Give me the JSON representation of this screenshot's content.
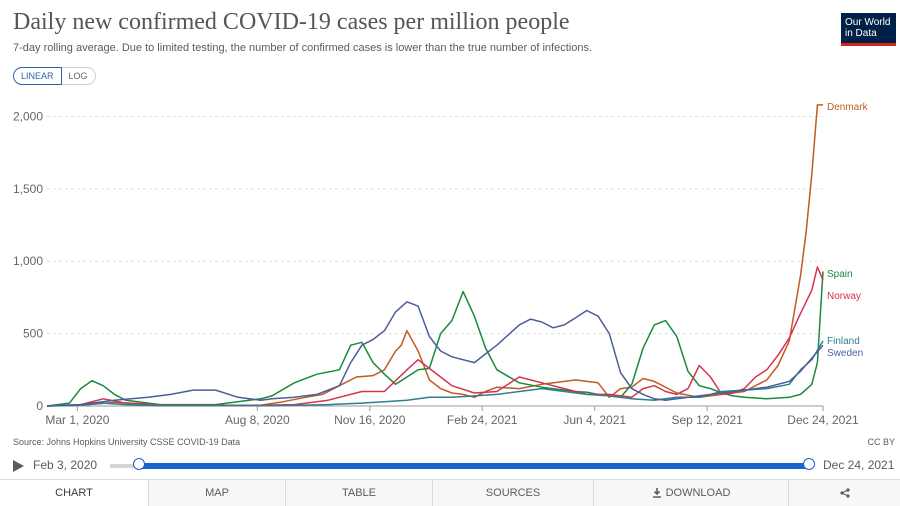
{
  "header": {
    "title": "Daily new confirmed COVID-19 cases per million people",
    "subtitle": "7-day rolling average. Due to limited testing, the number of confirmed cases is lower than the true number of infections.",
    "logo_line1": "Our World",
    "logo_line2": "in Data"
  },
  "scale_toggle": {
    "linear": "LINEAR",
    "log": "LOG",
    "selected": "LINEAR"
  },
  "source": "Source: Johns Hopkins University CSSE COVID-19 Data",
  "license": "CC BY",
  "timeline": {
    "start_label": "Feb 3, 2020",
    "end_label": "Dec 24, 2021"
  },
  "tabs": [
    "CHART",
    "MAP",
    "TABLE",
    "SOURCES",
    "DOWNLOAD"
  ],
  "colors": {
    "Denmark": "#c15b20",
    "Spain": "#1a8a3a",
    "Norway": "#d6334f",
    "Finland": "#2f7f8f",
    "Sweden": "#4c5d9c",
    "accent": "#1764d1"
  },
  "chart_data": {
    "type": "line",
    "title": "Daily new confirmed COVID-19 cases per million people",
    "xlabel": "",
    "ylabel": "",
    "ylim": [
      0,
      2100
    ],
    "y_ticks": [
      0,
      500,
      1000,
      1500,
      2000
    ],
    "y_tick_labels": [
      "0",
      "500",
      "1,000",
      "1,500",
      "2,000"
    ],
    "x_tick_labels": [
      "Mar 1, 2020",
      "Aug 8, 2020",
      "Nov 16, 2020",
      "Feb 24, 2021",
      "Jun 4, 2021",
      "Sep 12, 2021",
      "Dec 24, 2021"
    ],
    "x_tick_days": [
      27,
      187,
      287,
      387,
      487,
      587,
      690
    ],
    "x_days_range": [
      0,
      690
    ],
    "x_unit": "days since Feb 3, 2020",
    "series": [
      {
        "name": "Denmark",
        "color": "#c15b20",
        "x": [
          0,
          30,
          60,
          100,
          150,
          190,
          210,
          230,
          245,
          260,
          275,
          290,
          300,
          310,
          315,
          320,
          330,
          340,
          350,
          360,
          370,
          380,
          390,
          400,
          420,
          440,
          460,
          470,
          480,
          490,
          500,
          510,
          520,
          530,
          540,
          560,
          580,
          600,
          620,
          640,
          650,
          660,
          670,
          675,
          680,
          685,
          690
        ],
        "y": [
          0,
          5,
          25,
          10,
          5,
          5,
          30,
          60,
          80,
          140,
          200,
          210,
          250,
          380,
          420,
          520,
          380,
          180,
          120,
          90,
          80,
          60,
          100,
          130,
          120,
          150,
          170,
          180,
          170,
          160,
          60,
          120,
          130,
          190,
          170,
          90,
          60,
          80,
          100,
          180,
          280,
          450,
          900,
          1200,
          1600,
          2080,
          2080
        ]
      },
      {
        "name": "Spain",
        "color": "#1a8a3a",
        "x": [
          0,
          20,
          30,
          40,
          50,
          60,
          70,
          100,
          150,
          190,
          200,
          220,
          240,
          260,
          270,
          280,
          290,
          300,
          310,
          320,
          330,
          340,
          350,
          360,
          370,
          380,
          390,
          400,
          420,
          440,
          460,
          470,
          480,
          490,
          500,
          510,
          520,
          530,
          540,
          550,
          560,
          570,
          580,
          590,
          600,
          610,
          620,
          640,
          660,
          670,
          680,
          685,
          690
        ],
        "y": [
          0,
          20,
          120,
          175,
          140,
          80,
          40,
          10,
          10,
          50,
          70,
          160,
          220,
          250,
          420,
          440,
          300,
          220,
          150,
          200,
          250,
          260,
          500,
          590,
          790,
          620,
          400,
          250,
          160,
          130,
          110,
          100,
          95,
          80,
          70,
          60,
          150,
          400,
          560,
          590,
          480,
          240,
          140,
          120,
          90,
          70,
          60,
          50,
          60,
          80,
          150,
          300,
          930
        ]
      },
      {
        "name": "Norway",
        "color": "#d6334f",
        "x": [
          0,
          30,
          50,
          70,
          100,
          150,
          190,
          220,
          250,
          270,
          280,
          300,
          320,
          330,
          340,
          360,
          380,
          400,
          420,
          440,
          460,
          480,
          500,
          520,
          530,
          540,
          550,
          560,
          570,
          580,
          590,
          600,
          610,
          620,
          630,
          640,
          650,
          660,
          670,
          680,
          685,
          690
        ],
        "y": [
          0,
          10,
          50,
          20,
          5,
          5,
          5,
          10,
          40,
          80,
          100,
          100,
          250,
          320,
          260,
          140,
          90,
          100,
          200,
          160,
          120,
          80,
          80,
          60,
          120,
          140,
          100,
          80,
          120,
          280,
          200,
          80,
          90,
          120,
          200,
          250,
          350,
          470,
          640,
          800,
          960,
          870
        ]
      },
      {
        "name": "Finland",
        "color": "#2f7f8f",
        "x": [
          0,
          30,
          50,
          70,
          100,
          150,
          200,
          250,
          280,
          300,
          320,
          340,
          360,
          380,
          400,
          420,
          440,
          460,
          480,
          500,
          520,
          540,
          560,
          580,
          600,
          620,
          640,
          660,
          670,
          680,
          690
        ],
        "y": [
          0,
          5,
          20,
          10,
          2,
          2,
          2,
          10,
          20,
          30,
          40,
          60,
          60,
          70,
          80,
          100,
          120,
          100,
          80,
          70,
          50,
          40,
          60,
          60,
          100,
          110,
          120,
          150,
          250,
          320,
          450
        ]
      },
      {
        "name": "Sweden",
        "color": "#4c5d9c",
        "x": [
          0,
          30,
          60,
          90,
          110,
          130,
          150,
          170,
          190,
          200,
          220,
          240,
          260,
          270,
          280,
          290,
          300,
          310,
          320,
          330,
          340,
          350,
          360,
          380,
          390,
          400,
          420,
          430,
          440,
          450,
          460,
          470,
          480,
          490,
          500,
          510,
          520,
          530,
          540,
          550,
          560,
          580,
          600,
          620,
          640,
          660,
          670,
          680,
          690
        ],
        "y": [
          0,
          10,
          40,
          60,
          80,
          110,
          110,
          60,
          40,
          50,
          60,
          80,
          140,
          300,
          420,
          460,
          520,
          650,
          720,
          690,
          480,
          380,
          340,
          300,
          360,
          420,
          560,
          600,
          580,
          540,
          560,
          610,
          660,
          620,
          500,
          230,
          120,
          80,
          50,
          40,
          50,
          70,
          90,
          110,
          130,
          170,
          240,
          330,
          420
        ]
      }
    ]
  }
}
